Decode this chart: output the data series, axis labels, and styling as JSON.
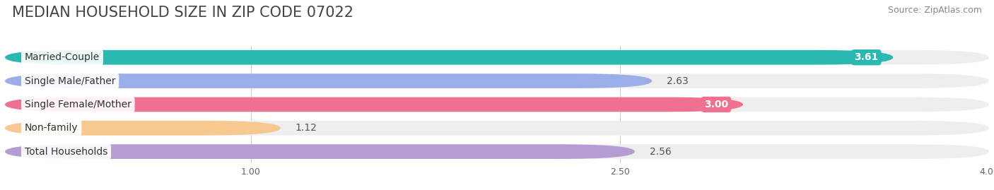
{
  "title": "MEDIAN HOUSEHOLD SIZE IN ZIP CODE 07022",
  "source": "Source: ZipAtlas.com",
  "categories": [
    "Married-Couple",
    "Single Male/Father",
    "Single Female/Mother",
    "Non-family",
    "Total Households"
  ],
  "values": [
    3.61,
    2.63,
    3.0,
    1.12,
    2.56
  ],
  "bar_colors": [
    "#2ab8b0",
    "#9baee8",
    "#f07090",
    "#f5c990",
    "#b59dd4"
  ],
  "value_inside": [
    true,
    false,
    true,
    false,
    false
  ],
  "xlim": [
    0,
    4.0
  ],
  "xticks": [
    1.0,
    2.5,
    4.0
  ],
  "background_color": "#ffffff",
  "bar_bg_color": "#eeeeee",
  "title_fontsize": 15,
  "source_fontsize": 9,
  "label_fontsize": 10,
  "value_fontsize": 10,
  "bar_height": 0.62,
  "n_bars": 5
}
